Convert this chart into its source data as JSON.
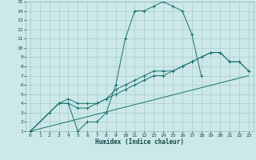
{
  "bg_color": "#cce8e8",
  "grid_color": "#aacccc",
  "line_color": "#1a7070",
  "xlabel": "Humidex (Indice chaleur)",
  "xlim": [
    -0.5,
    23.5
  ],
  "ylim": [
    1,
    15
  ],
  "xticks": [
    0,
    1,
    2,
    3,
    4,
    5,
    6,
    7,
    8,
    9,
    10,
    11,
    12,
    13,
    14,
    15,
    16,
    17,
    18,
    19,
    20,
    21,
    22,
    23
  ],
  "yticks": [
    1,
    2,
    3,
    4,
    5,
    6,
    7,
    8,
    9,
    10,
    11,
    12,
    13,
    14,
    15
  ],
  "line1_x": [
    0,
    2,
    3,
    4,
    5,
    6,
    7,
    8,
    9,
    10,
    11,
    12,
    13,
    14,
    15,
    16,
    17,
    18
  ],
  "line1_y": [
    1,
    3,
    4,
    4,
    1,
    2,
    2,
    3,
    6,
    11,
    14,
    14,
    14.5,
    15,
    14.5,
    14,
    11.5,
    7
  ],
  "line2_x": [
    0,
    3,
    4,
    5,
    6,
    7,
    8,
    9,
    10,
    11,
    12,
    13,
    14,
    15,
    16,
    17,
    18,
    19,
    20,
    21,
    22,
    23
  ],
  "line2_y": [
    1,
    4,
    4,
    3.5,
    3.5,
    4,
    4.5,
    5.5,
    6,
    6.5,
    7,
    7.5,
    7.5,
    7.5,
    8,
    8.5,
    9,
    9.5,
    9.5,
    8.5,
    8.5,
    7.5
  ],
  "line3_x": [
    0,
    23
  ],
  "line3_y": [
    1,
    7
  ],
  "line4_x": [
    0,
    3,
    4,
    5,
    6,
    7,
    8,
    9,
    10,
    11,
    12,
    13,
    14,
    15,
    16,
    17,
    18,
    19,
    20,
    21,
    22,
    23
  ],
  "line4_y": [
    1,
    4,
    4.5,
    4,
    4,
    4,
    4.5,
    5,
    5.5,
    6,
    6.5,
    7,
    7,
    7.5,
    8,
    8.5,
    9,
    9.5,
    9.5,
    8.5,
    8.5,
    7.5
  ]
}
